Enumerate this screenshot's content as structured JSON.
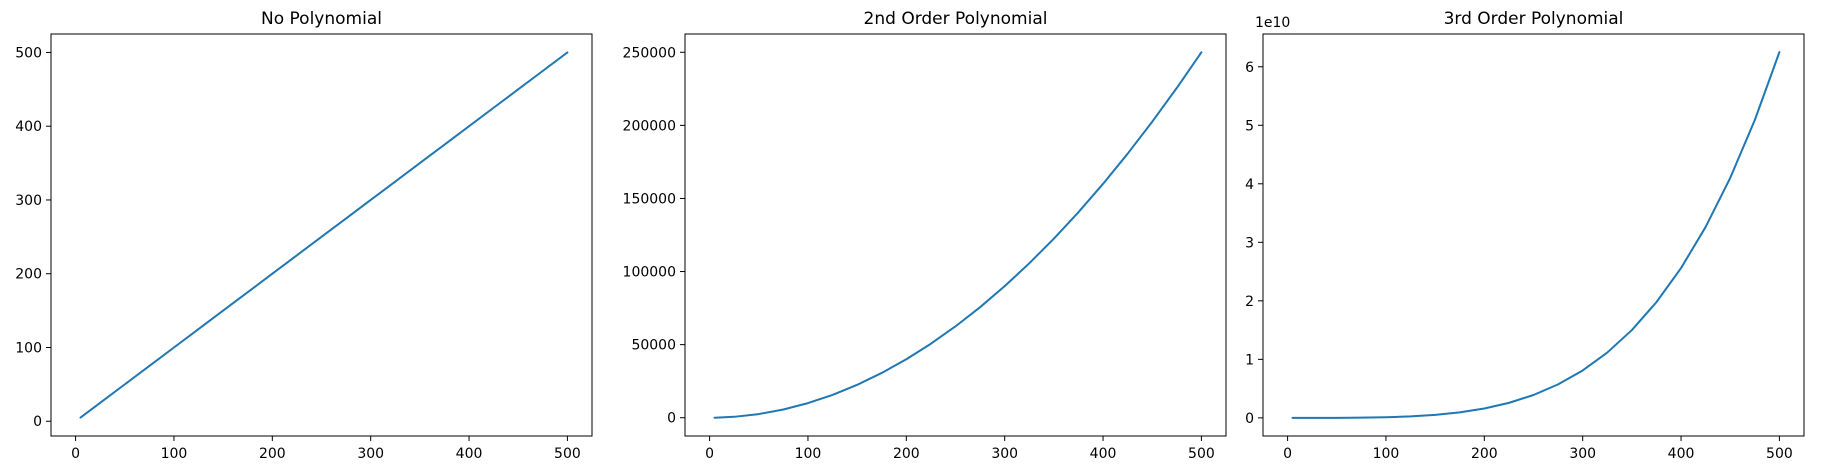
{
  "colors": {
    "series": "#1f77b4",
    "axes": "#000000",
    "background": "#ffffff"
  },
  "chart_data": [
    {
      "type": "line",
      "title": "No Polynomial",
      "xlabel": "",
      "ylabel": "",
      "xlim": [
        -25,
        525
      ],
      "ylim": [
        -20,
        525
      ],
      "xticks": [
        0,
        100,
        200,
        300,
        400,
        500
      ],
      "yticks": [
        0,
        100,
        200,
        300,
        400,
        500
      ],
      "ytick_labels": [
        "0",
        "100",
        "200",
        "300",
        "400",
        "500"
      ],
      "offset_label": "",
      "grid": false,
      "series": [
        {
          "x": [
            5,
            25,
            50,
            75,
            100,
            125,
            150,
            175,
            200,
            225,
            250,
            275,
            300,
            325,
            350,
            375,
            400,
            425,
            450,
            475,
            500
          ],
          "y": [
            5,
            25,
            50,
            75,
            100,
            125,
            150,
            175,
            200,
            225,
            250,
            275,
            300,
            325,
            350,
            375,
            400,
            425,
            450,
            475,
            500
          ]
        }
      ]
    },
    {
      "type": "line",
      "title": "2nd Order Polynomial",
      "xlabel": "",
      "ylabel": "",
      "xlim": [
        -25,
        525
      ],
      "ylim": [
        -12500,
        262500
      ],
      "xticks": [
        0,
        100,
        200,
        300,
        400,
        500
      ],
      "yticks": [
        0,
        50000,
        100000,
        150000,
        200000,
        250000
      ],
      "ytick_labels": [
        "0",
        "50000",
        "100000",
        "150000",
        "200000",
        "250000"
      ],
      "offset_label": "",
      "grid": false,
      "series": [
        {
          "x": [
            5,
            25,
            50,
            75,
            100,
            125,
            150,
            175,
            200,
            225,
            250,
            275,
            300,
            325,
            350,
            375,
            400,
            425,
            450,
            475,
            500
          ],
          "y": [
            25,
            625,
            2500,
            5625,
            10000,
            15625,
            22500,
            30625,
            40000,
            50625,
            62500,
            75625,
            90000,
            105625,
            122500,
            140625,
            160000,
            180625,
            202500,
            225625,
            250000
          ]
        }
      ]
    },
    {
      "type": "line",
      "title": "3rd Order Polynomial",
      "xlabel": "",
      "ylabel": "",
      "xlim": [
        -25,
        525
      ],
      "ylim": [
        -3100000000.0,
        65600000000.0
      ],
      "xticks": [
        0,
        100,
        200,
        300,
        400,
        500
      ],
      "yticks": [
        0,
        10000000000.0,
        20000000000.0,
        30000000000.0,
        40000000000.0,
        50000000000.0,
        60000000000.0
      ],
      "ytick_labels": [
        "0",
        "1",
        "2",
        "3",
        "4",
        "5",
        "6"
      ],
      "offset_label": "1e10",
      "grid": false,
      "series": [
        {
          "x": [
            5,
            25,
            50,
            75,
            100,
            125,
            150,
            175,
            200,
            225,
            250,
            275,
            300,
            325,
            350,
            375,
            400,
            425,
            450,
            475,
            500
          ],
          "y": [
            625,
            390625,
            6250000,
            31640625,
            100000000,
            244140625,
            506250000,
            937890625,
            1600000000,
            2562890625,
            3906250000,
            5719140625,
            8100000000,
            11157640625,
            15006250000,
            19775390625,
            25600000000,
            32625390625,
            41006250000,
            50906640625,
            62500000000
          ]
        }
      ]
    }
  ]
}
